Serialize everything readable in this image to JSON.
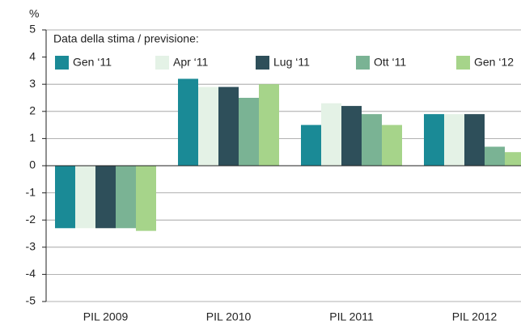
{
  "chart_data": {
    "type": "bar",
    "y_unit": "%",
    "legend_title": "Data della stima / previsione:",
    "categories": [
      "PIL 2009",
      "PIL 2010",
      "PIL 2011",
      "PIL 2012"
    ],
    "series": [
      {
        "name": "Gen ‘11",
        "color": "#1a8a96",
        "values": [
          -2.3,
          3.2,
          1.5,
          1.9
        ]
      },
      {
        "name": "Apr ‘11",
        "color": "#e4f2e6",
        "values": [
          -2.3,
          2.9,
          2.3,
          1.9
        ]
      },
      {
        "name": "Lug ‘11",
        "color": "#2e4f5a",
        "values": [
          -2.3,
          2.9,
          2.2,
          1.9
        ]
      },
      {
        "name": "Ott ‘11",
        "color": "#7ab394",
        "values": [
          -2.3,
          2.5,
          1.9,
          0.7
        ]
      },
      {
        "name": "Gen ‘12",
        "color": "#a6d48a",
        "values": [
          -2.4,
          3.0,
          1.5,
          0.5
        ]
      }
    ],
    "ylim": [
      -5,
      5
    ],
    "yticks": [
      -5,
      -4,
      -3,
      -2,
      -1,
      0,
      1,
      2,
      3,
      4,
      5
    ],
    "grid": true
  }
}
